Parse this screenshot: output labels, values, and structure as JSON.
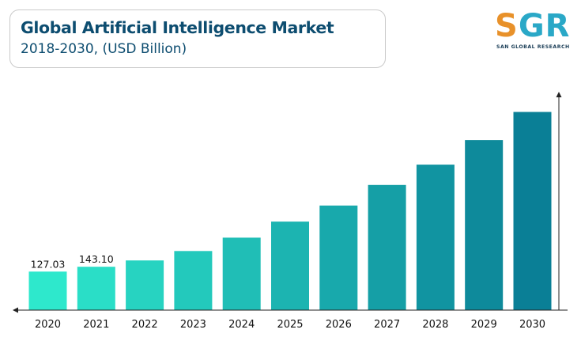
{
  "header": {
    "title": "Global Artificial Intelligence Market",
    "subtitle": "2018-2030, (USD Billion)"
  },
  "logo": {
    "letters_accent": "S",
    "letters_rest": "GR",
    "tagline": "SAN GLOBAL RESEARCH"
  },
  "colors": {
    "title": "#0d4d70",
    "bar_start": "#2ee8cc",
    "bar_end": "#0a7f96",
    "axis": "#222222",
    "logo_orange": "#e8912a",
    "logo_teal": "#2aa8c7"
  },
  "chart_data": {
    "type": "bar",
    "title": "Global Artificial Intelligence Market",
    "subtitle": "2018-2030, (USD Billion)",
    "xlabel": "",
    "ylabel": "",
    "categories": [
      "2020",
      "2021",
      "2022",
      "2023",
      "2024",
      "2025",
      "2026",
      "2027",
      "2028",
      "2029",
      "2030"
    ],
    "values": [
      127.03,
      143.1,
      164,
      195,
      239,
      292,
      345,
      413,
      480,
      561,
      654
    ],
    "data_labels": [
      "127.03",
      "143.10",
      "",
      "",
      "",
      "",
      "",
      "",
      "",
      "",
      ""
    ],
    "ylim": [
      0,
      710
    ],
    "grid": false,
    "legend": "none"
  }
}
